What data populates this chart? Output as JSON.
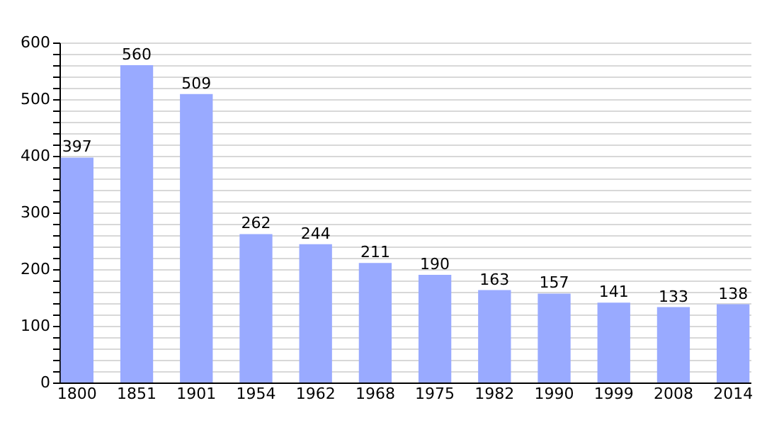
{
  "chart_data": {
    "type": "bar",
    "categories": [
      "1800",
      "1851",
      "1901",
      "1954",
      "1962",
      "1968",
      "1975",
      "1982",
      "1990",
      "1999",
      "2008",
      "2014"
    ],
    "values": [
      397,
      560,
      509,
      262,
      244,
      211,
      190,
      163,
      157,
      141,
      133,
      138
    ],
    "color": "#99aaff",
    "ylim": [
      0,
      600
    ],
    "yticks": [
      0,
      {
        "value": 20,
        "label": null
      },
      {
        "value": 40,
        "label": null
      },
      {
        "value": 60,
        "label": null
      },
      {
        "value": 80,
        "label": null
      },
      100,
      {
        "value": 120,
        "label": null
      },
      {
        "value": 140,
        "label": null
      },
      {
        "value": 160,
        "label": null
      },
      {
        "value": 180,
        "label": null
      },
      200,
      {
        "value": 220,
        "label": null
      },
      {
        "value": 240,
        "label": null
      },
      {
        "value": 260,
        "label": null
      },
      {
        "value": 280,
        "label": null
      },
      300,
      {
        "value": 320,
        "label": null
      },
      {
        "value": 340,
        "label": null
      },
      {
        "value": 360,
        "label": null
      },
      {
        "value": 380,
        "label": null
      },
      400,
      {
        "value": 420,
        "label": null
      },
      {
        "value": 440,
        "label": null
      },
      {
        "value": 460,
        "label": null
      },
      {
        "value": 480,
        "label": null
      },
      500,
      {
        "value": 520,
        "label": null
      },
      {
        "value": 540,
        "label": null
      },
      {
        "value": 560,
        "label": null
      },
      {
        "value": 580,
        "label": null
      },
      600
    ],
    "grid": "y",
    "data_labels": true
  }
}
